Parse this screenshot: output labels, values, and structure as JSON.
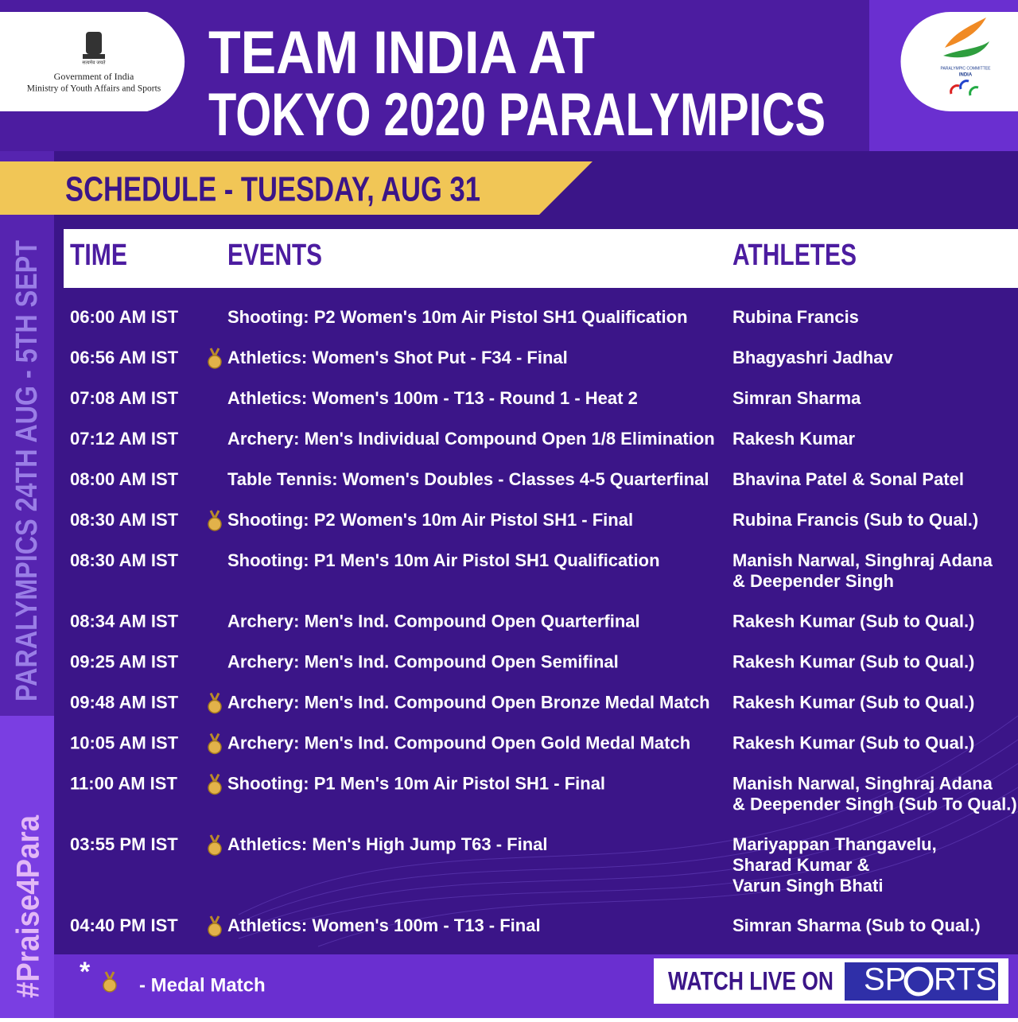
{
  "header": {
    "emblem_motto": "सत्यमेव जयते",
    "gov_line1": "Government of India",
    "gov_line2": "Ministry of Youth Affairs and Sports",
    "title_line1": "TEAM INDIA AT",
    "title_line2": "TOKYO 2020 PARALYMPICS",
    "logo_line1": "PARALYMPIC COMMITTEE",
    "logo_line2": "INDIA"
  },
  "schedule_heading": "SCHEDULE - TUESDAY, AUG 31",
  "side": {
    "dates": "PARALYMPICS 24TH AUG - 5TH SEPT",
    "hashtag": "#Praise4Para"
  },
  "table": {
    "headers": [
      "TIME",
      "EVENTS",
      "ATHLETES"
    ],
    "rows": [
      {
        "time": "06:00 AM IST",
        "event": "Shooting: P2 Women's 10m Air Pistol SH1 Qualification",
        "athletes": [
          "Rubina Francis"
        ],
        "medal": false
      },
      {
        "time": "06:56 AM IST",
        "event": "Athletics: Women's Shot Put - F34 - Final",
        "athletes": [
          "Bhagyashri Jadhav"
        ],
        "medal": true
      },
      {
        "time": "07:08 AM IST",
        "event": "Athletics: Women's 100m - T13 - Round 1 - Heat 2",
        "athletes": [
          "Simran Sharma"
        ],
        "medal": false
      },
      {
        "time": "07:12 AM IST",
        "event": "Archery: Men's Individual Compound Open 1/8 Elimination",
        "athletes": [
          "Rakesh Kumar"
        ],
        "medal": false
      },
      {
        "time": "08:00 AM IST",
        "event": "Table Tennis: Women's Doubles - Classes 4-5 Quarterfinal",
        "athletes": [
          "Bhavina Patel & Sonal Patel"
        ],
        "medal": false
      },
      {
        "time": "08:30 AM IST",
        "event": "Shooting: P2 Women's 10m Air Pistol SH1 - Final",
        "athletes": [
          "Rubina Francis (Sub to Qual.)"
        ],
        "medal": true
      },
      {
        "time": "08:30 AM IST",
        "event": "Shooting: P1 Men's 10m Air Pistol SH1 Qualification",
        "athletes": [
          "Manish Narwal, Singhraj Adana",
          "& Deepender Singh"
        ],
        "medal": false
      },
      {
        "time": "08:34 AM IST",
        "event": "Archery: Men's Ind. Compound Open Quarterfinal",
        "athletes": [
          "Rakesh Kumar (Sub to Qual.)"
        ],
        "medal": false
      },
      {
        "time": "09:25 AM IST",
        "event": "Archery: Men's Ind. Compound Open Semifinal",
        "athletes": [
          "Rakesh Kumar (Sub to Qual.)"
        ],
        "medal": false
      },
      {
        "time": "09:48 AM IST",
        "event": "Archery: Men's Ind. Compound Open Bronze Medal Match",
        "athletes": [
          "Rakesh Kumar (Sub to Qual.)"
        ],
        "medal": true
      },
      {
        "time": "10:05 AM IST",
        "event": "Archery: Men's Ind. Compound Open Gold Medal Match",
        "athletes": [
          "Rakesh Kumar (Sub to Qual.)"
        ],
        "medal": true
      },
      {
        "time": "11:00 AM IST",
        "event": "Shooting: P1 Men's 10m Air Pistol SH1 - Final",
        "athletes": [
          "Manish Narwal, Singhraj Adana",
          "& Deepender Singh (Sub To Qual.)"
        ],
        "medal": true
      },
      {
        "time": "03:55 PM IST",
        "event": "Athletics: Men's High Jump T63 - Final",
        "athletes": [
          "Mariyappan Thangavelu,",
          "Sharad Kumar &",
          "Varun Singh Bhati"
        ],
        "medal": true
      },
      {
        "time": "04:40 PM IST",
        "event": "Athletics: Women's 100m - T13 - Final",
        "athletes": [
          "Simran Sharma (Sub to Qual.)"
        ],
        "medal": true
      }
    ]
  },
  "legend": {
    "asterisk": "*",
    "text": "- Medal Match"
  },
  "footer": {
    "watch": "WATCH LIVE ON",
    "brand_left": "SP",
    "brand_right": "RTS"
  }
}
